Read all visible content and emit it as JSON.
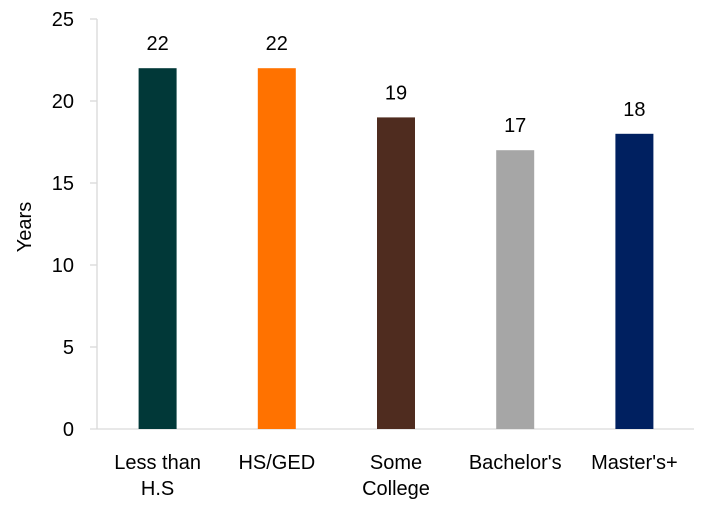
{
  "chart_data": {
    "type": "bar",
    "categories": [
      [
        "Less than",
        "H.S"
      ],
      [
        "HS/GED"
      ],
      [
        "Some",
        "College"
      ],
      [
        "Bachelor's"
      ],
      [
        "Master's+"
      ]
    ],
    "values": [
      22,
      22,
      19,
      17,
      18
    ],
    "data_labels": [
      "22",
      "22",
      "19",
      "17",
      "18"
    ],
    "colors": [
      "#013838",
      "#ff7200",
      "#4f2c1f",
      "#a6a6a6",
      "#002060"
    ],
    "ylabel": "Years",
    "xlabel": "",
    "ylim": [
      0,
      25
    ],
    "yticks": [
      0,
      5,
      10,
      15,
      20,
      25
    ],
    "grid": false,
    "legend": "none"
  }
}
